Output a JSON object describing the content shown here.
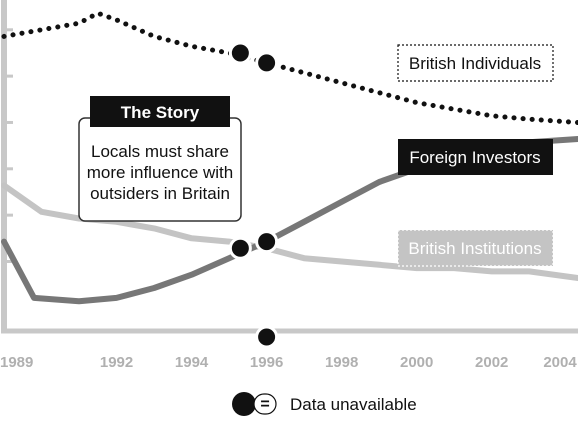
{
  "chart_data": {
    "type": "line",
    "x_ticks": [
      "1989",
      "1992",
      "1994",
      "1996",
      "1998",
      "2000",
      "2002",
      "2004"
    ],
    "xlim": [
      1989,
      2004.3
    ],
    "ylim": [
      0,
      100
    ],
    "grid": false,
    "series": [
      {
        "name": "British Individuals",
        "style": "dotted",
        "color": "#111111",
        "points": [
          [
            1989,
            89
          ],
          [
            1990,
            91
          ],
          [
            1991,
            93
          ],
          [
            1991.5,
            96
          ],
          [
            1992,
            94
          ],
          [
            1993,
            89
          ],
          [
            1994,
            86
          ],
          [
            1995,
            84
          ],
          [
            1996,
            81
          ],
          [
            1997,
            78
          ],
          [
            1998,
            75
          ],
          [
            1999,
            72
          ],
          [
            2000,
            69
          ],
          [
            2001,
            67
          ],
          [
            2002,
            65
          ],
          [
            2003,
            64
          ],
          [
            2004.3,
            63
          ]
        ]
      },
      {
        "name": "Foreign Investors",
        "style": "solid",
        "color": "#777777",
        "points": [
          [
            1989,
            27
          ],
          [
            1989.8,
            10
          ],
          [
            1991,
            9
          ],
          [
            1992,
            10
          ],
          [
            1993,
            13
          ],
          [
            1994,
            17
          ],
          [
            1995,
            22
          ],
          [
            1996,
            27
          ],
          [
            1997,
            33
          ],
          [
            1998,
            39
          ],
          [
            1999,
            45
          ],
          [
            2000,
            49
          ],
          [
            2001,
            53
          ],
          [
            2002,
            56
          ],
          [
            2003,
            57
          ],
          [
            2004.3,
            58
          ]
        ]
      },
      {
        "name": "British Institutions",
        "style": "solid",
        "color": "#c4c4c4",
        "points": [
          [
            1989,
            44
          ],
          [
            1990,
            36
          ],
          [
            1991,
            34
          ],
          [
            1992,
            33
          ],
          [
            1993,
            31
          ],
          [
            1994,
            28
          ],
          [
            1995,
            27
          ],
          [
            1996,
            25
          ],
          [
            1997,
            22
          ],
          [
            1998,
            21
          ],
          [
            1999,
            20
          ],
          [
            2000,
            19
          ],
          [
            2001,
            19
          ],
          [
            2002,
            18
          ],
          [
            2003,
            18
          ],
          [
            2004.3,
            16
          ]
        ]
      }
    ],
    "unavailable_points": [
      [
        1995.3,
        84
      ],
      [
        1996,
        81
      ],
      [
        1995.3,
        25
      ],
      [
        1996,
        27
      ],
      [
        1996,
        -13
      ]
    ],
    "series_labels": {
      "individuals": "British Individuals",
      "foreign": "Foreign Investors",
      "institutions": "British Institutions"
    },
    "story": {
      "title": "The Story",
      "lines": [
        "Locals must share",
        "more influence with",
        "outsiders in Britain"
      ]
    },
    "legend": {
      "symbol": "=",
      "label": "Data unavailable"
    },
    "colors": {
      "axis": "#c8c8c8",
      "individuals": "#111111",
      "foreign": "#777777",
      "institutions": "#c4c4c4"
    }
  }
}
